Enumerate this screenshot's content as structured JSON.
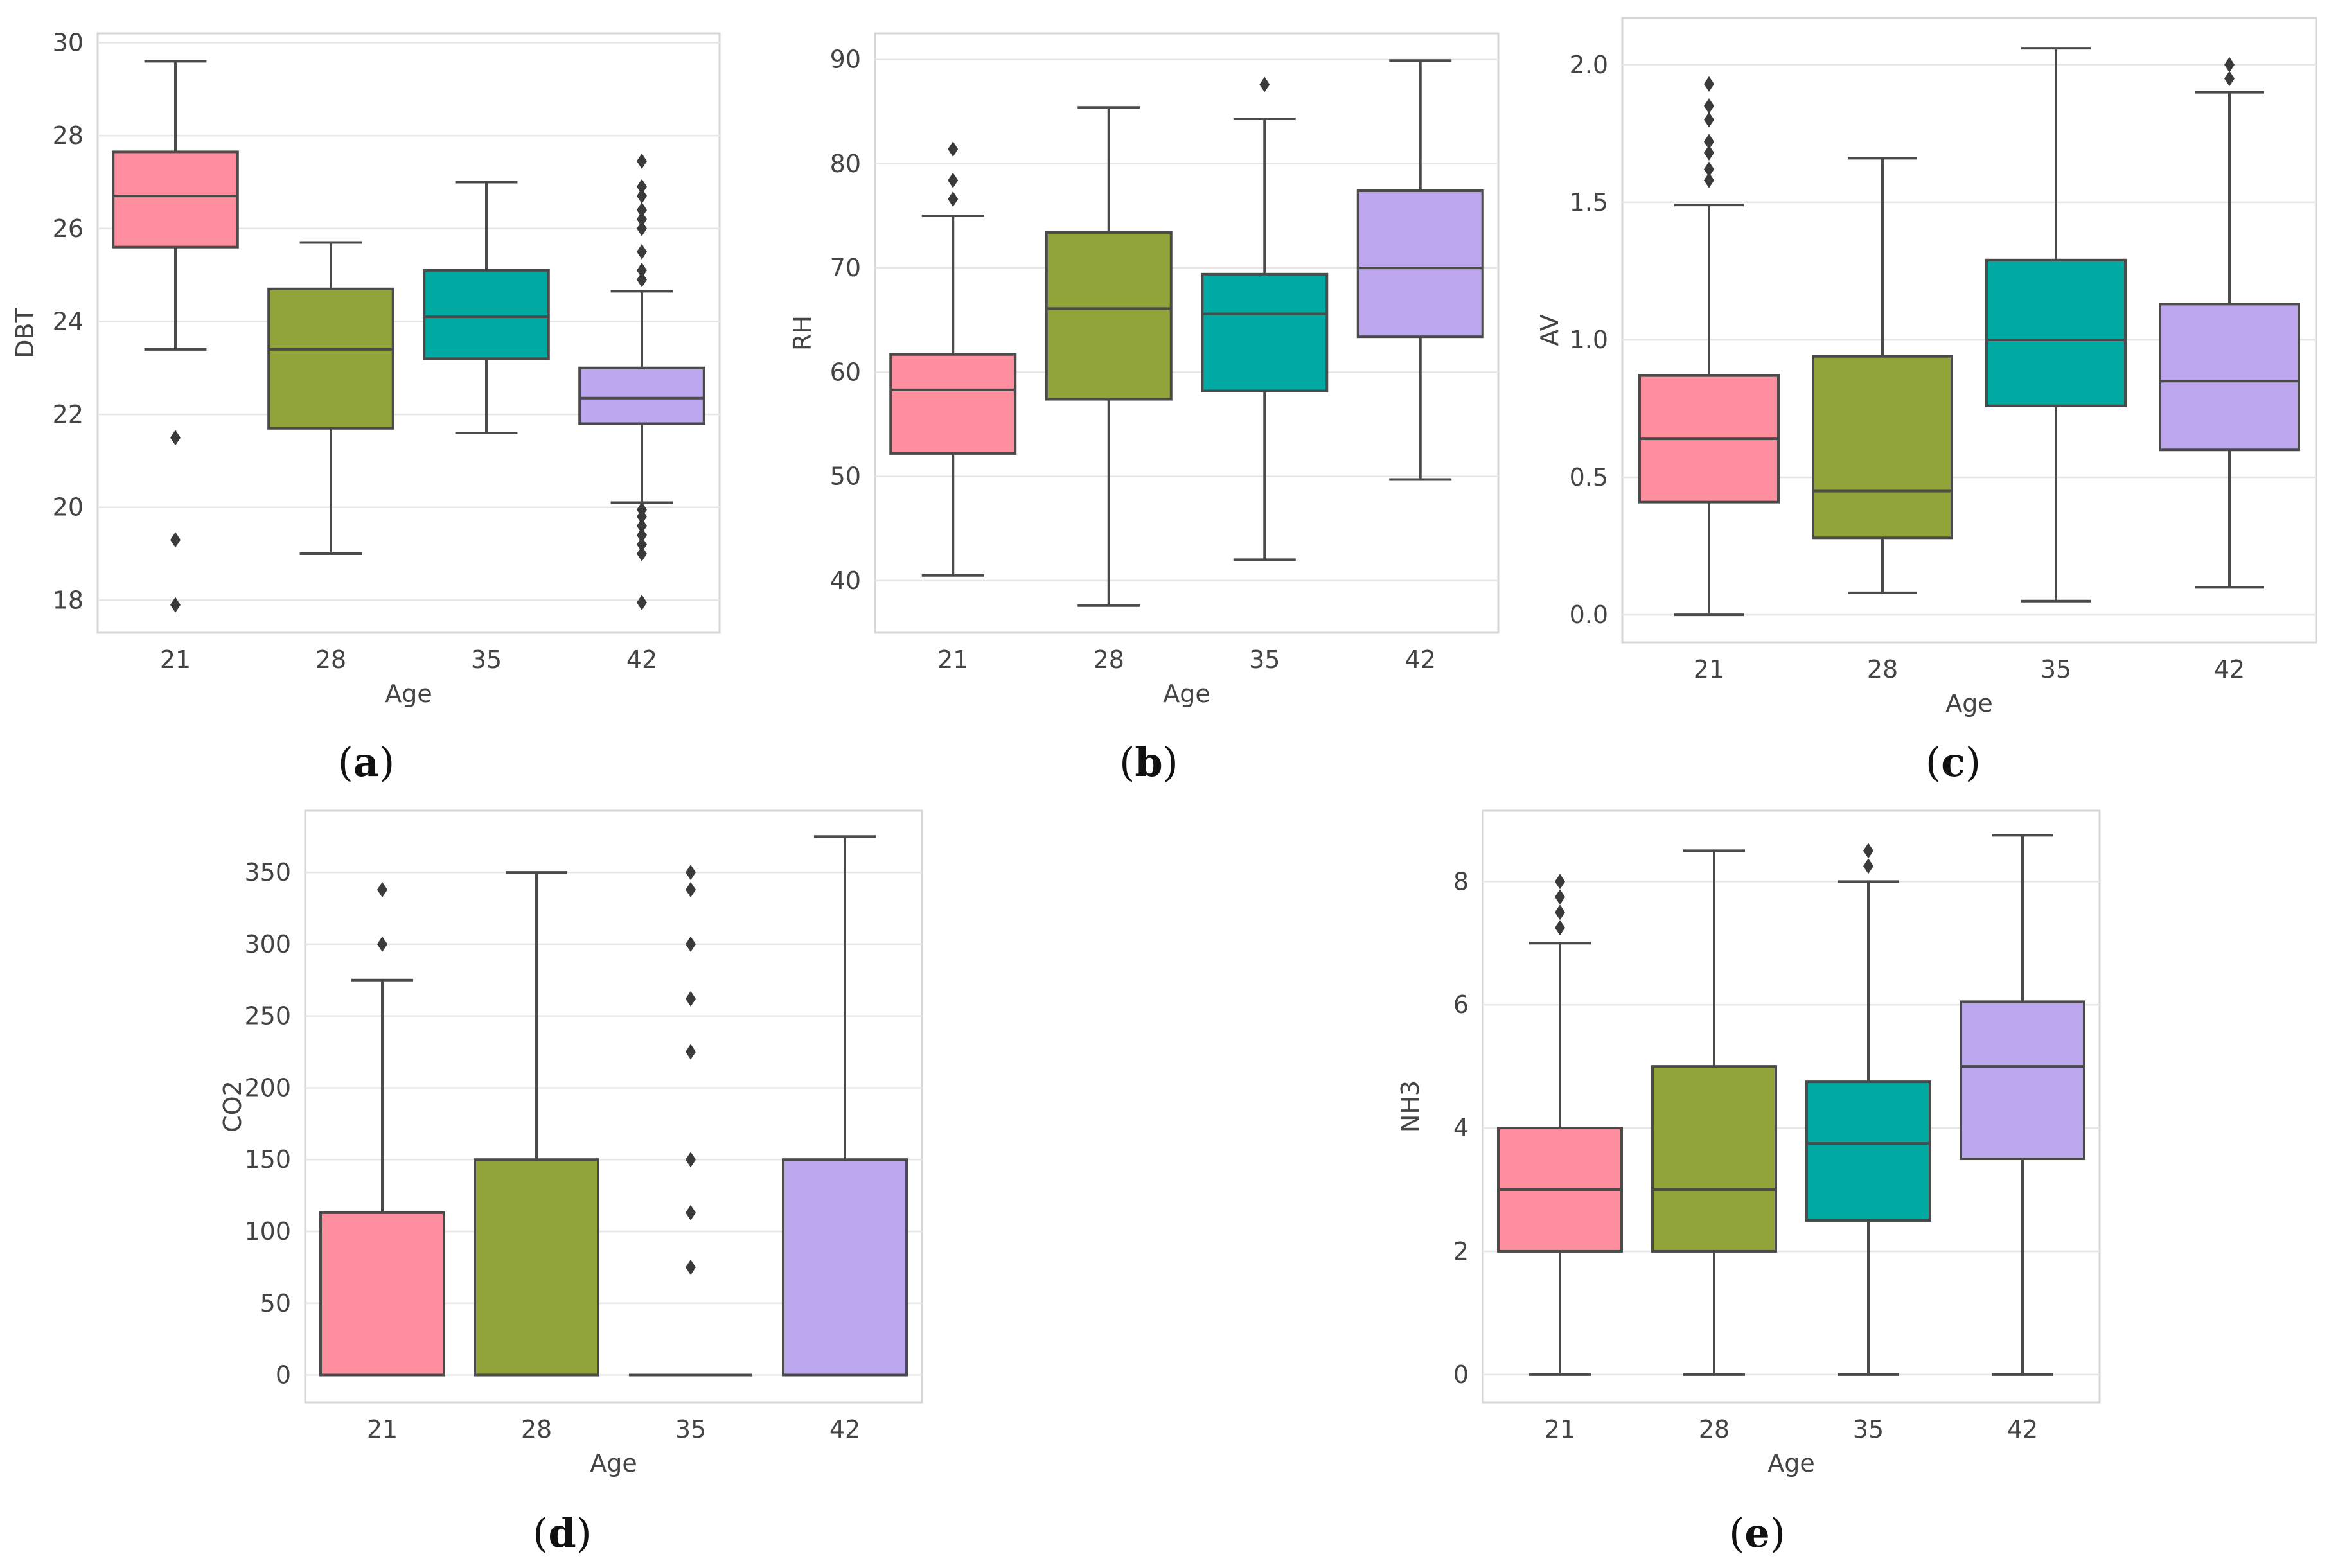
{
  "colors": [
    "#ff8f9f",
    "#91a43a",
    "#00a9a2",
    "#bca7ef"
  ],
  "chart_data": [
    {
      "type": "box",
      "panel_label": "a",
      "xlabel": "Age",
      "ylabel": "DBT",
      "categories": [
        "21",
        "28",
        "35",
        "42"
      ],
      "yticks": [
        18,
        20,
        22,
        24,
        26,
        28,
        30
      ],
      "ylim": [
        17.3,
        30.2
      ],
      "boxes": [
        {
          "category": "21",
          "whislo": 23.4,
          "q1": 25.6,
          "med": 26.7,
          "q3": 27.65,
          "whishi": 29.6,
          "fliers": [
            21.5,
            19.3,
            17.9
          ]
        },
        {
          "category": "28",
          "whislo": 19.0,
          "q1": 21.7,
          "med": 23.4,
          "q3": 24.7,
          "whishi": 25.7,
          "fliers": []
        },
        {
          "category": "35",
          "whislo": 21.6,
          "q1": 23.2,
          "med": 24.1,
          "q3": 25.1,
          "whishi": 27.0,
          "fliers": []
        },
        {
          "category": "42",
          "whislo": 20.1,
          "q1": 21.8,
          "med": 22.35,
          "q3": 23.0,
          "whishi": 24.65,
          "fliers": [
            27.45,
            26.9,
            26.7,
            26.4,
            26.2,
            26.0,
            25.5,
            25.1,
            24.9,
            19.95,
            19.8,
            19.6,
            19.4,
            19.2,
            19.0,
            17.95
          ]
        }
      ]
    },
    {
      "type": "box",
      "panel_label": "b",
      "xlabel": "Age",
      "ylabel": "RH",
      "categories": [
        "21",
        "28",
        "35",
        "42"
      ],
      "yticks": [
        40,
        50,
        60,
        70,
        80,
        90
      ],
      "ylim": [
        35.0,
        92.5
      ],
      "boxes": [
        {
          "category": "21",
          "whislo": 40.5,
          "q1": 52.2,
          "med": 58.3,
          "q3": 61.7,
          "whishi": 75.0,
          "fliers": [
            81.4,
            78.4,
            76.6
          ]
        },
        {
          "category": "28",
          "whislo": 37.6,
          "q1": 57.4,
          "med": 66.1,
          "q3": 73.4,
          "whishi": 85.4,
          "fliers": []
        },
        {
          "category": "35",
          "whislo": 42.0,
          "q1": 58.2,
          "med": 65.6,
          "q3": 69.4,
          "whishi": 84.3,
          "fliers": [
            87.6
          ]
        },
        {
          "category": "42",
          "whislo": 49.7,
          "q1": 63.4,
          "med": 70.0,
          "q3": 77.4,
          "whishi": 89.9,
          "fliers": []
        }
      ]
    },
    {
      "type": "box",
      "panel_label": "c",
      "xlabel": "Age",
      "ylabel": "AV",
      "categories": [
        "21",
        "28",
        "35",
        "42"
      ],
      "yticks": [
        0.0,
        0.5,
        1.0,
        1.5,
        2.0
      ],
      "ytick_labels": [
        "0.0",
        "0.5",
        "1.0",
        "1.5",
        "2.0"
      ],
      "ylim": [
        -0.1,
        2.17
      ],
      "boxes": [
        {
          "category": "21",
          "whislo": 0.0,
          "q1": 0.41,
          "med": 0.64,
          "q3": 0.87,
          "whishi": 1.49,
          "fliers": [
            1.93,
            1.85,
            1.8,
            1.72,
            1.68,
            1.62,
            1.58
          ]
        },
        {
          "category": "28",
          "whislo": 0.08,
          "q1": 0.28,
          "med": 0.45,
          "q3": 0.94,
          "whishi": 1.66,
          "fliers": []
        },
        {
          "category": "35",
          "whislo": 0.05,
          "q1": 0.76,
          "med": 1.0,
          "q3": 1.29,
          "whishi": 2.06,
          "fliers": []
        },
        {
          "category": "42",
          "whislo": 0.1,
          "q1": 0.6,
          "med": 0.85,
          "q3": 1.13,
          "whishi": 1.9,
          "fliers": [
            2.0,
            1.95
          ]
        }
      ]
    },
    {
      "type": "box",
      "panel_label": "d",
      "xlabel": "Age",
      "ylabel": "CO2",
      "categories": [
        "21",
        "28",
        "35",
        "42"
      ],
      "yticks": [
        0,
        50,
        100,
        150,
        200,
        250,
        300,
        350
      ],
      "ylim": [
        -19,
        393
      ],
      "boxes": [
        {
          "category": "21",
          "whislo": 0,
          "q1": 0,
          "med": 0,
          "q3": 113,
          "whishi": 275,
          "fliers": [
            338,
            300
          ]
        },
        {
          "category": "28",
          "whislo": 0,
          "q1": 0,
          "med": 0,
          "q3": 150,
          "whishi": 350,
          "fliers": []
        },
        {
          "category": "35",
          "whislo": 0,
          "q1": 0,
          "med": 0,
          "q3": 0,
          "whishi": 0,
          "fliers": [
            350,
            338,
            300,
            262,
            225,
            150,
            113,
            75
          ]
        },
        {
          "category": "42",
          "whislo": 0,
          "q1": 0,
          "med": 0,
          "q3": 150,
          "whishi": 375,
          "fliers": []
        }
      ]
    },
    {
      "type": "box",
      "panel_label": "e",
      "xlabel": "Age",
      "ylabel": "NH3",
      "categories": [
        "21",
        "28",
        "35",
        "42"
      ],
      "yticks": [
        0,
        2,
        4,
        6,
        8
      ],
      "ylim": [
        -0.45,
        9.15
      ],
      "boxes": [
        {
          "category": "21",
          "whislo": 0,
          "q1": 2.0,
          "med": 3.0,
          "q3": 4.0,
          "whishi": 7.0,
          "fliers": [
            8.0,
            7.75,
            7.5,
            7.25
          ]
        },
        {
          "category": "28",
          "whislo": 0,
          "q1": 2.0,
          "med": 3.0,
          "q3": 5.0,
          "whishi": 8.5,
          "fliers": []
        },
        {
          "category": "35",
          "whislo": 0,
          "q1": 2.5,
          "med": 3.75,
          "q3": 4.75,
          "whishi": 8.0,
          "fliers": [
            8.5,
            8.25
          ]
        },
        {
          "category": "42",
          "whislo": 0,
          "q1": 3.5,
          "med": 5.0,
          "q3": 6.05,
          "whishi": 8.75,
          "fliers": []
        }
      ]
    }
  ]
}
